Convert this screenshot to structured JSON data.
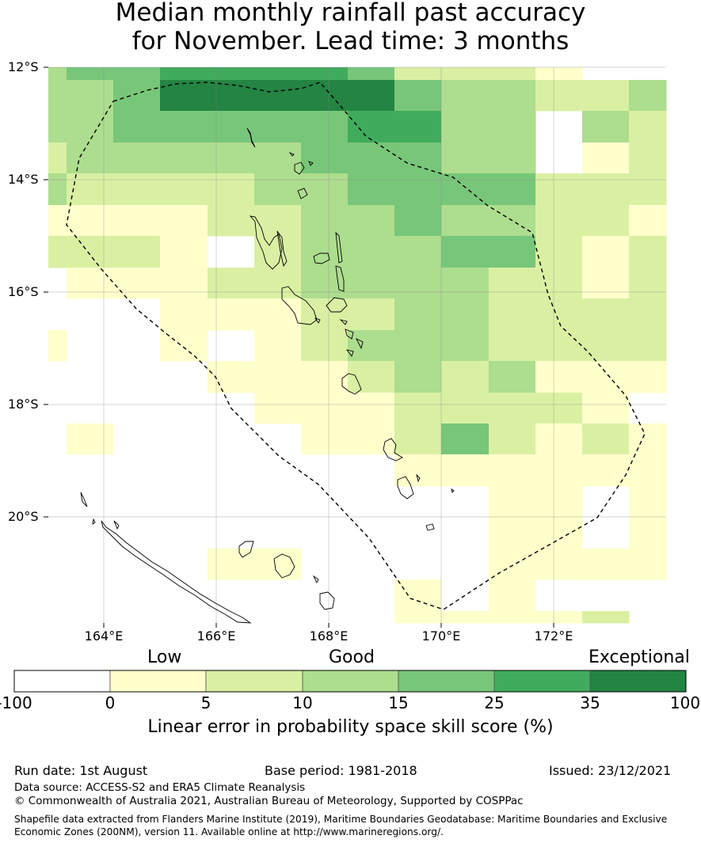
{
  "title_line1": "Median monthly rainfall past accuracy",
  "title_line2": "for November. Lead time: 3 months",
  "lat_labels": [
    "12°S",
    "14°S",
    "16°S",
    "18°S",
    "20°S"
  ],
  "lon_labels": [
    "164°E",
    "166°E",
    "168°E",
    "170°E",
    "172°E"
  ],
  "categories": [
    "Low",
    "Good",
    "Exceptional"
  ],
  "colorbar_ticks": [
    "-100",
    "0",
    "5",
    "10",
    "15",
    "25",
    "35",
    "100"
  ],
  "colorbar_colors": [
    "#ffffff",
    "#ffffcc",
    "#d9f0a3",
    "#addd8e",
    "#78c679",
    "#41ab5d",
    "#238443"
  ],
  "colorbar_title": "Linear error in probability space skill score (%)",
  "run_date": "Run date: 1st August",
  "base_period": "Base period: 1981-2018",
  "issued": "Issued: 23/12/2021",
  "data_source": "Data source: ACCESS-S2 and ERA5 Climate Reanalysis",
  "copyright": "© Commonwealth of Australia 2021, Australian Bureau of Meteorology, Supported by COSPPac",
  "shapefile_note": "Shapefile data extracted from Flanders Marine Institute (2019), Maritime Boundaries Geodatabase: Maritime Boundaries and Exclusive Economic Zones (200NM), version 11. Available online at http://www.marineregions.org/."
}
